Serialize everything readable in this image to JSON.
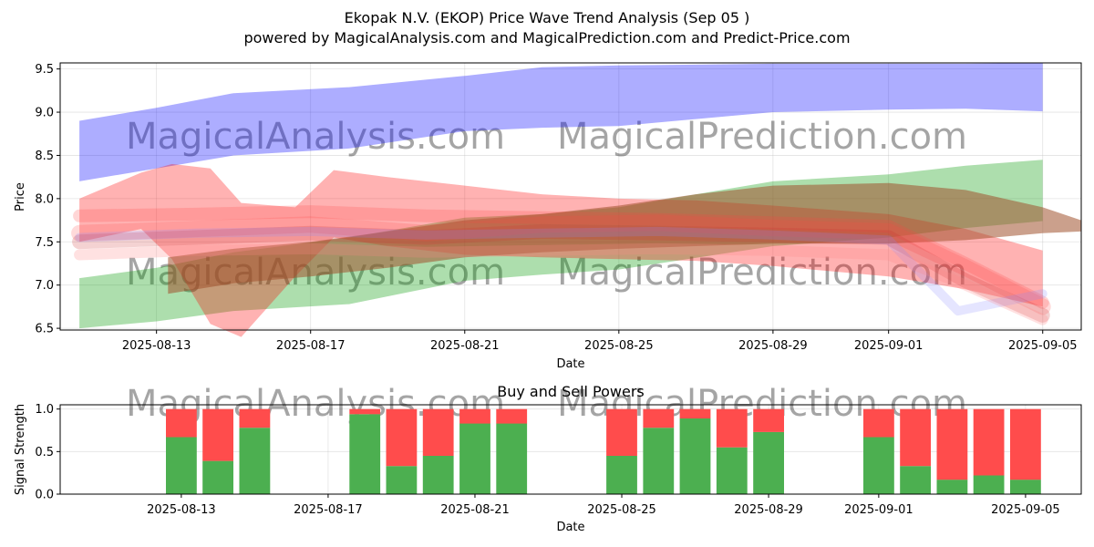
{
  "title": "Ekopak N.V. (EKOP) Price Wave Trend Analysis (Sep 05 )",
  "subtitle": "powered by MagicalAnalysis.com and MagicalPrediction.com and Predict-Price.com",
  "watermarks": [
    "MagicalAnalysis.com",
    "MagicalPrediction.com"
  ],
  "chart_data": [
    {
      "type": "area",
      "name": "price-wave",
      "xlabel": "Date",
      "ylabel": "Price",
      "xlim": [
        "2025-08-10T12:00",
        "2025-09-06T00:00"
      ],
      "ylim": [
        6.48,
        9.57
      ],
      "yticks": [
        6.5,
        7.0,
        7.5,
        8.0,
        8.5,
        9.0,
        9.5
      ],
      "xticks": [
        "2025-08-13",
        "2025-08-17",
        "2025-08-21",
        "2025-08-25",
        "2025-08-29",
        "2025-09-01",
        "2025-09-05"
      ],
      "grid": true,
      "bands": [
        {
          "color": "#0000ff",
          "opacity": 0.32,
          "x": [
            "2025-08-11",
            "2025-08-13",
            "2025-08-15",
            "2025-08-18",
            "2025-08-21",
            "2025-08-23",
            "2025-08-25",
            "2025-08-29",
            "2025-09-01",
            "2025-09-03",
            "2025-09-05"
          ],
          "upper": [
            8.9,
            9.05,
            9.22,
            9.29,
            9.42,
            9.52,
            9.54,
            9.56,
            9.56,
            9.56,
            9.57
          ],
          "lower": [
            8.2,
            8.35,
            8.5,
            8.58,
            8.78,
            8.82,
            8.84,
            9.0,
            9.03,
            9.04,
            9.01
          ]
        },
        {
          "color": "#009900",
          "opacity": 0.32,
          "x": [
            "2025-08-11",
            "2025-08-13",
            "2025-08-15",
            "2025-08-18",
            "2025-08-21",
            "2025-08-23",
            "2025-08-25",
            "2025-08-29",
            "2025-09-01",
            "2025-09-03",
            "2025-09-05"
          ],
          "upper": [
            7.08,
            7.2,
            7.38,
            7.55,
            7.78,
            7.82,
            7.9,
            8.2,
            8.28,
            8.38,
            8.45
          ],
          "lower": [
            6.5,
            6.58,
            6.7,
            6.78,
            7.05,
            7.12,
            7.18,
            7.45,
            7.55,
            7.66,
            7.74
          ]
        },
        {
          "color": "#ff0000",
          "opacity": 0.3,
          "x": [
            "2025-08-11",
            "2025-08-12.6",
            "2025-08-13.4",
            "2025-08-14.4",
            "2025-08-15.2",
            "2025-08-16.6",
            "2025-08-17.6",
            "2025-08-19",
            "2025-08-21",
            "2025-08-23",
            "2025-08-25",
            "2025-08-27",
            "2025-08-29",
            "2025-09-01",
            "2025-09-03",
            "2025-09-05"
          ],
          "upper": [
            8.0,
            8.3,
            8.4,
            8.35,
            7.95,
            7.9,
            8.33,
            8.25,
            8.15,
            8.05,
            8.0,
            7.98,
            7.92,
            7.82,
            7.65,
            7.4
          ],
          "lower": [
            7.5,
            7.65,
            7.3,
            6.55,
            6.4,
            7.1,
            7.55,
            7.45,
            7.35,
            7.32,
            7.3,
            7.28,
            7.22,
            7.1,
            6.95,
            6.75
          ]
        },
        {
          "color": "#a0522d",
          "opacity": 0.55,
          "x": [
            "2025-08-13.3",
            "2025-08-15",
            "2025-08-17",
            "2025-08-19",
            "2025-08-21",
            "2025-08-23",
            "2025-08-25",
            "2025-08-27",
            "2025-08-29",
            "2025-09-01",
            "2025-09-03",
            "2025-09-05",
            "2025-09-06"
          ],
          "upper": [
            7.32,
            7.42,
            7.5,
            7.62,
            7.75,
            7.82,
            7.92,
            8.05,
            8.15,
            8.18,
            8.1,
            7.9,
            7.75
          ],
          "lower": [
            6.9,
            7.02,
            7.1,
            7.2,
            7.32,
            7.38,
            7.42,
            7.45,
            7.48,
            7.48,
            7.52,
            7.6,
            7.62
          ]
        }
      ],
      "lines": [
        {
          "color": "#ff4444",
          "opacity": 0.22,
          "width": 14,
          "x": [
            "2025-08-11",
            "2025-08-14",
            "2025-08-17",
            "2025-08-20",
            "2025-08-23",
            "2025-08-26",
            "2025-08-29",
            "2025-09-01",
            "2025-09-03",
            "2025-09-05"
          ],
          "y": [
            7.8,
            7.82,
            7.85,
            7.8,
            7.78,
            7.76,
            7.72,
            7.68,
            7.25,
            6.8
          ]
        },
        {
          "color": "#ff4444",
          "opacity": 0.2,
          "width": 18,
          "x": [
            "2025-08-11",
            "2025-08-14",
            "2025-08-17",
            "2025-08-20",
            "2025-08-23",
            "2025-08-26",
            "2025-08-29",
            "2025-09-01",
            "2025-09-03",
            "2025-09-05"
          ],
          "y": [
            7.6,
            7.65,
            7.7,
            7.6,
            7.7,
            7.72,
            7.66,
            7.62,
            7.2,
            6.75
          ]
        },
        {
          "color": "#cc3333",
          "opacity": 0.22,
          "width": 16,
          "x": [
            "2025-08-11",
            "2025-08-14",
            "2025-08-17",
            "2025-08-20",
            "2025-08-23",
            "2025-08-26",
            "2025-08-29",
            "2025-09-01",
            "2025-09-03",
            "2025-09-05"
          ],
          "y": [
            7.5,
            7.55,
            7.6,
            7.55,
            7.62,
            7.6,
            7.58,
            7.55,
            7.05,
            6.65
          ]
        },
        {
          "color": "#8888ff",
          "opacity": 0.22,
          "width": 10,
          "x": [
            "2025-08-11",
            "2025-08-14",
            "2025-08-17",
            "2025-08-20",
            "2025-08-23",
            "2025-08-26",
            "2025-08-29",
            "2025-09-01",
            "2025-09-02.8",
            "2025-09-05"
          ],
          "y": [
            7.55,
            7.6,
            7.62,
            7.58,
            7.6,
            7.62,
            7.58,
            7.52,
            6.7,
            6.9
          ]
        },
        {
          "color": "#ff8888",
          "opacity": 0.25,
          "width": 12,
          "x": [
            "2025-08-11",
            "2025-08-14",
            "2025-08-17",
            "2025-08-20",
            "2025-08-23",
            "2025-08-26",
            "2025-08-29",
            "2025-09-01",
            "2025-09-03",
            "2025-09-05"
          ],
          "y": [
            7.35,
            7.4,
            7.42,
            7.38,
            7.4,
            7.42,
            7.4,
            7.35,
            7.0,
            6.6
          ]
        }
      ]
    },
    {
      "type": "bar",
      "name": "buy-sell-powers",
      "title": "Buy and Sell Powers",
      "xlabel": "Date",
      "ylabel": "Signal Strength",
      "ylim": [
        0,
        1.05
      ],
      "yticks": [
        0.0,
        0.5,
        1.0
      ],
      "xticks": [
        "2025-08-13",
        "2025-08-17",
        "2025-08-21",
        "2025-08-25",
        "2025-08-29",
        "2025-09-01",
        "2025-09-05"
      ],
      "grid": true,
      "colors": {
        "buy": "#4caf50",
        "sell": "#ff4c4c"
      },
      "categories": [
        "2025-08-13",
        "2025-08-14",
        "2025-08-15",
        "2025-08-18",
        "2025-08-19",
        "2025-08-20",
        "2025-08-21",
        "2025-08-22",
        "2025-08-25",
        "2025-08-26",
        "2025-08-27",
        "2025-08-28",
        "2025-08-29",
        "2025-09-01",
        "2025-09-02",
        "2025-09-03",
        "2025-09-04",
        "2025-09-05"
      ],
      "series": [
        {
          "values": [
            0.67,
            0.39,
            0.78,
            0.94,
            0.33,
            0.45,
            0.83,
            0.83,
            0.45,
            0.78,
            0.89,
            0.55,
            0.73,
            0.67,
            0.33,
            0.17,
            0.22,
            0.17
          ]
        },
        {
          "values": [
            0.33,
            0.61,
            0.22,
            0.06,
            0.67,
            0.55,
            0.17,
            0.17,
            0.55,
            0.22,
            0.11,
            0.45,
            0.27,
            0.33,
            0.67,
            0.83,
            0.78,
            0.83
          ]
        }
      ]
    }
  ]
}
